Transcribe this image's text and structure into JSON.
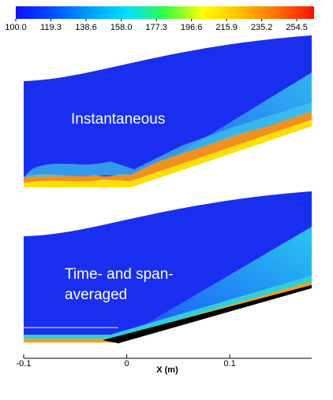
{
  "chart_data": {
    "type": "contour",
    "colorbar": {
      "clim": [
        100,
        264
      ],
      "ticks": [
        {
          "value": 100,
          "label": "100.0"
        },
        {
          "value": 119.3,
          "label": "119.3"
        },
        {
          "value": 138.6,
          "label": "138.6"
        },
        {
          "value": 158,
          "label": "158.0"
        },
        {
          "value": 177.3,
          "label": "177.3"
        },
        {
          "value": 196.6,
          "label": "196.6"
        },
        {
          "value": 215.9,
          "label": "215.9"
        },
        {
          "value": 235.2,
          "label": "235.2"
        },
        {
          "value": 254.5,
          "label": "254.5"
        }
      ],
      "colors": [
        "#1010ff",
        "#0050ff",
        "#00a0ff",
        "#00e0ff",
        "#30ff40",
        "#ffff00",
        "#ffc000",
        "#ff7000",
        "#ff1000"
      ]
    },
    "xlabel": "X (m)",
    "xlim": [
      -0.1,
      0.178
    ],
    "xticks": [
      -0.1,
      0,
      0.1
    ],
    "annotations": [
      "Instantaneous",
      "Time- and span-",
      "averaged"
    ]
  }
}
